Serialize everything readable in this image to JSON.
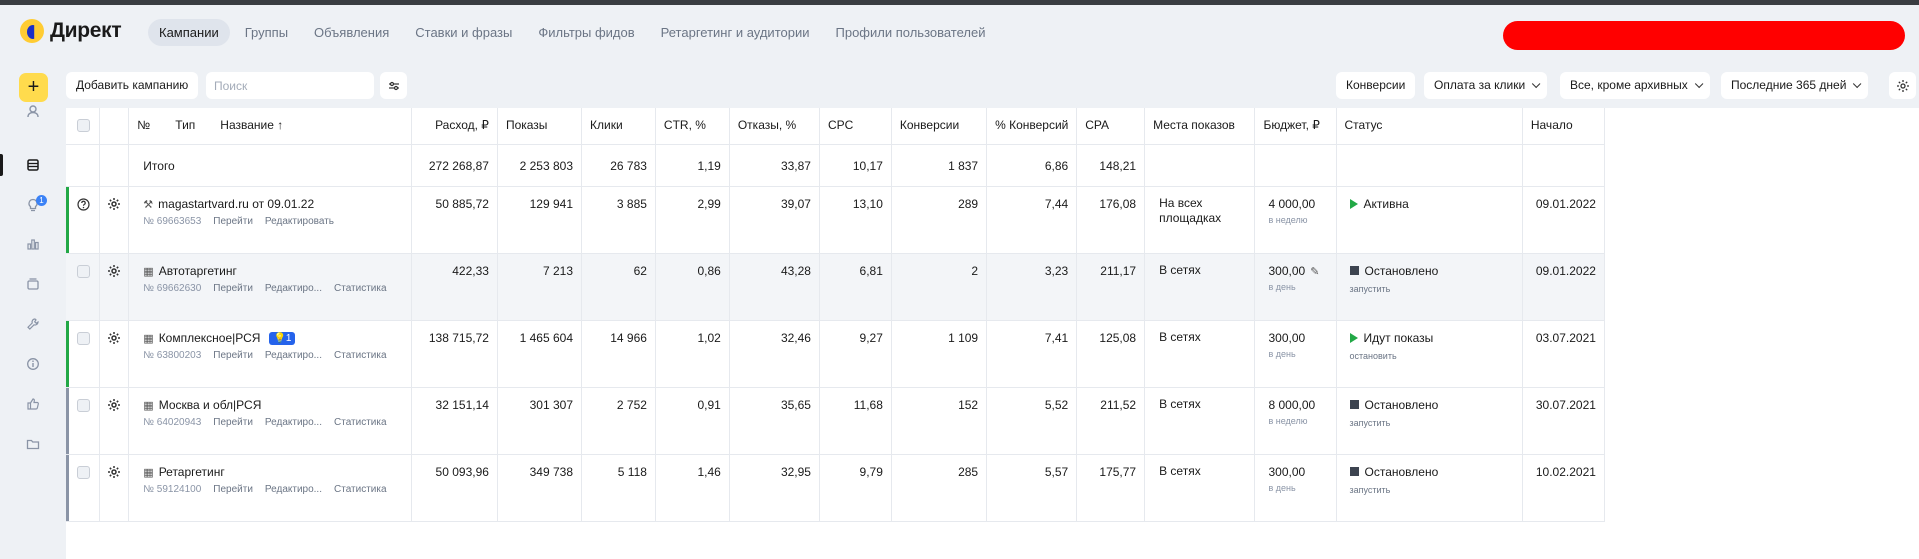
{
  "header": {
    "logo_text": "Директ",
    "tabs": [
      {
        "label": "Кампании",
        "active": true
      },
      {
        "label": "Группы"
      },
      {
        "label": "Объявления"
      },
      {
        "label": "Ставки и фразы"
      },
      {
        "label": "Фильтры фидов"
      },
      {
        "label": "Ретаргетинг и аудитории"
      },
      {
        "label": "Профили пользователей"
      }
    ]
  },
  "sidebar": {
    "add_label": "+",
    "badge": "1",
    "icons": [
      "user-icon",
      "campaigns-icon",
      "lightbulb-icon",
      "stats-icon",
      "archive-icon",
      "tools-icon",
      "info-icon",
      "like-icon",
      "folder-icon"
    ]
  },
  "toolbar": {
    "add_campaign": "Добавить кампанию",
    "search_placeholder": "Поиск",
    "conversions": "Конверсии",
    "payment": "Оплата за клики",
    "archive_filter": "Все, кроме архивных",
    "period": "Последние 365 дней"
  },
  "table": {
    "headers": {
      "num": "№",
      "type": "Тип",
      "name": "Название ↑",
      "cost": "Расход, ₽",
      "impressions": "Показы",
      "clicks": "Клики",
      "ctr": "CTR, %",
      "bounce": "Отказы, %",
      "cpc": "CPC",
      "conversions": "Конверсии",
      "conv_rate": "% Конверсий",
      "cpa": "CPA",
      "placements": "Места показов",
      "budget": "Бюджет, ₽",
      "status": "Статус",
      "start": "Начало"
    },
    "total": {
      "label": "Итого",
      "cost": "272 268,87",
      "impressions": "2 253 803",
      "clicks": "26 783",
      "ctr": "1,19",
      "bounce": "33,87",
      "cpc": "10,17",
      "conversions": "1 837",
      "conv_rate": "6,86",
      "cpa": "148,21"
    },
    "rows": [
      {
        "type_icon": "⚒",
        "name": "magastartvard.ru от 09.01.22",
        "id": "№ 69663653",
        "go": "Перейти",
        "edit": "Редактировать",
        "stats": "",
        "tag": "",
        "cost": "50 885,72",
        "impressions": "129 941",
        "clicks": "3 885",
        "ctr": "2,99",
        "bounce": "39,07",
        "cpc": "13,10",
        "conversions": "289",
        "conv_rate": "7,44",
        "cpa": "176,08",
        "placements": "На всех площадках",
        "budget": "4 000,00",
        "budget_period": "в неделю",
        "status": "Активна",
        "status_kind": "play",
        "status_action": "",
        "start": "09.01.2022",
        "stripe": "#22a846",
        "lead": "question"
      },
      {
        "type_icon": "▦",
        "name": "Автотаргетинг",
        "id": "№ 69662630",
        "go": "Перейти",
        "edit": "Редактиро...",
        "stats": "Статистика",
        "tag": "",
        "cost": "422,33",
        "impressions": "7 213",
        "clicks": "62",
        "ctr": "0,86",
        "bounce": "43,28",
        "cpc": "6,81",
        "conversions": "2",
        "conv_rate": "3,23",
        "cpa": "211,17",
        "placements": "В сетях",
        "budget": "300,00",
        "budget_period": "в день",
        "status": "Остановлено",
        "status_kind": "stop",
        "status_action": "запустить",
        "start": "09.01.2022",
        "stripe": "",
        "lead": "checkbox",
        "shaded": true,
        "pencil": true
      },
      {
        "type_icon": "▦",
        "name": "Комплексное|РСЯ",
        "id": "№ 63800203",
        "go": "Перейти",
        "edit": "Редактиро...",
        "stats": "Статистика",
        "tag": "1",
        "cost": "138 715,72",
        "impressions": "1 465 604",
        "clicks": "14 966",
        "ctr": "1,02",
        "bounce": "32,46",
        "cpc": "9,27",
        "conversions": "1 109",
        "conv_rate": "7,41",
        "cpa": "125,08",
        "placements": "В сетях",
        "budget": "300,00",
        "budget_period": "в день",
        "status": "Идут показы",
        "status_kind": "play",
        "status_action": "остановить",
        "start": "03.07.2021",
        "stripe": "#22a846",
        "lead": "checkbox"
      },
      {
        "type_icon": "▦",
        "name": "Москва и обл|РСЯ",
        "id": "№ 64020943",
        "go": "Перейти",
        "edit": "Редактиро...",
        "stats": "Статистика",
        "tag": "",
        "cost": "32 151,14",
        "impressions": "301 307",
        "clicks": "2 752",
        "ctr": "0,91",
        "bounce": "35,65",
        "cpc": "11,68",
        "conversions": "152",
        "conv_rate": "5,52",
        "cpa": "211,52",
        "placements": "В сетях",
        "budget": "8 000,00",
        "budget_period": "в неделю",
        "status": "Остановлено",
        "status_kind": "stop",
        "status_action": "запустить",
        "start": "30.07.2021",
        "stripe": "#8a94a6",
        "lead": "checkbox"
      },
      {
        "type_icon": "▦",
        "name": "Ретаргетинг",
        "id": "№ 59124100",
        "go": "Перейти",
        "edit": "Редактиро...",
        "stats": "Статистика",
        "tag": "",
        "cost": "50 093,96",
        "impressions": "349 738",
        "clicks": "5 118",
        "ctr": "1,46",
        "bounce": "32,95",
        "cpc": "9,79",
        "conversions": "285",
        "conv_rate": "5,57",
        "cpa": "175,77",
        "placements": "В сетях",
        "budget": "300,00",
        "budget_period": "в день",
        "status": "Остановлено",
        "status_kind": "stop",
        "status_action": "запустить",
        "start": "10.02.2021",
        "stripe": "#8a94a6",
        "lead": "checkbox"
      }
    ]
  }
}
